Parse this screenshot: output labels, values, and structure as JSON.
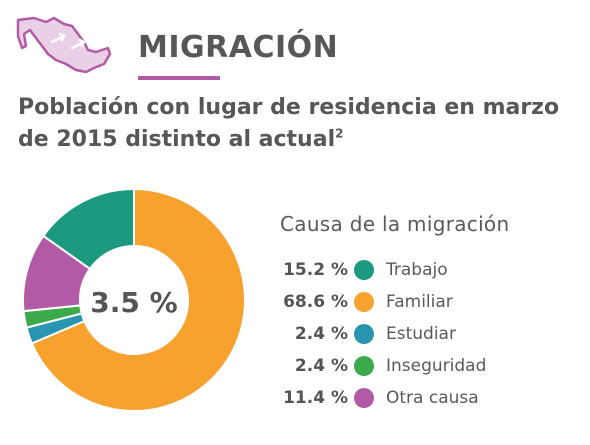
{
  "header": {
    "title": "MIGRACIÓN",
    "subtitle": "Población con lugar de residencia en marzo de 2015 distinto al actual",
    "subtitle_note": "2"
  },
  "colors": {
    "accent": "#b25aa6",
    "trabajo": "#1b9a7f",
    "familiar": "#f7a12e",
    "estudiar": "#2a95b0",
    "inseguridad": "#3aaa4b",
    "otra": "#b25aa6"
  },
  "chart_data": {
    "type": "pie",
    "center_label": "3.5 %",
    "legend_title": "Causa de la migración",
    "start_angle_deg": 0,
    "slices": [
      {
        "label": "Trabajo",
        "value": 15.2,
        "display": "15.2 %",
        "color": "#1b9a7f"
      },
      {
        "label": "Familiar",
        "value": 68.6,
        "display": "68.6 %",
        "color": "#f7a12e"
      },
      {
        "label": "Estudiar",
        "value": 2.4,
        "display": "2.4 %",
        "color": "#2a95b0"
      },
      {
        "label": "Inseguridad",
        "value": 2.4,
        "display": "2.4 %",
        "color": "#3aaa4b"
      },
      {
        "label": "Otra causa",
        "value": 11.4,
        "display": "11.4 %",
        "color": "#b25aa6"
      }
    ],
    "draw_order": [
      "Familiar",
      "Estudiar",
      "Inseguridad",
      "Otra causa",
      "Trabajo"
    ]
  }
}
